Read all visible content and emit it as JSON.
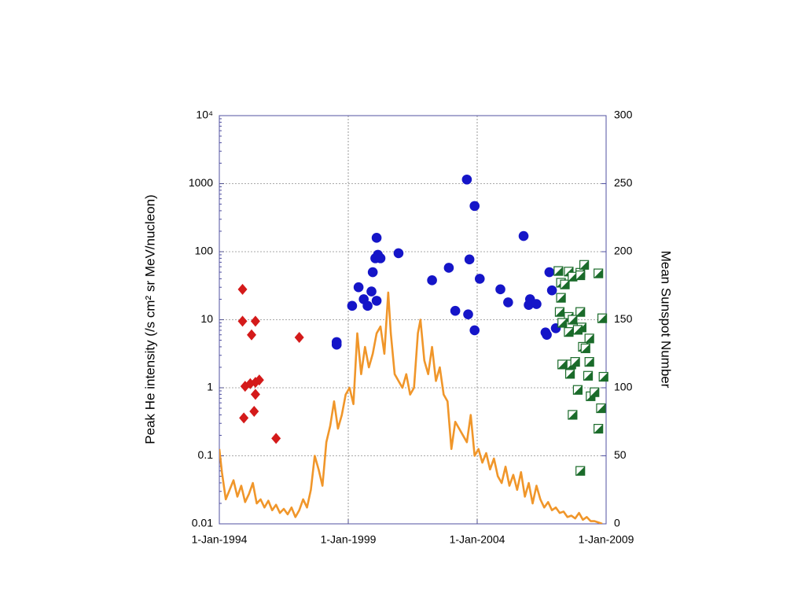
{
  "chart_data": {
    "type": "scatter",
    "ylabel": "Peak He intensity (/s cm² sr MeV/nucleon)",
    "y2label": "Mean Sunspot Number",
    "xlim": [
      1994,
      2009
    ],
    "xticks": [
      {
        "value": 1994,
        "label": "1-Jan-1994"
      },
      {
        "value": 1999,
        "label": "1-Jan-1999"
      },
      {
        "value": 2004,
        "label": "1-Jan-2004"
      },
      {
        "value": 2009,
        "label": "1-Jan-2009"
      }
    ],
    "ylim": [
      0.01,
      10000
    ],
    "ylog": true,
    "yticks": [
      0.01,
      0.1,
      1,
      10,
      100,
      1000,
      {
        "value": 10000,
        "label": "10⁴"
      }
    ],
    "y2lim": [
      0,
      300
    ],
    "y2ticks": [
      0,
      50,
      100,
      150,
      200,
      250,
      300
    ],
    "grid": true,
    "series": [
      {
        "type": "line",
        "axis": "y2",
        "color": "#f0962a",
        "x": [
          1994.0,
          1994.1,
          1994.25,
          1994.4,
          1994.55,
          1994.7,
          1994.85,
          1995.0,
          1995.15,
          1995.3,
          1995.45,
          1995.6,
          1995.75,
          1995.9,
          1996.05,
          1996.2,
          1996.35,
          1996.5,
          1996.65,
          1996.8,
          1996.95,
          1997.1,
          1997.25,
          1997.4,
          1997.55,
          1997.7,
          1997.85,
          1998.0,
          1998.15,
          1998.3,
          1998.45,
          1998.6,
          1998.75,
          1998.9,
          1999.05,
          1999.2,
          1999.35,
          1999.5,
          1999.65,
          1999.8,
          1999.95,
          2000.1,
          2000.25,
          2000.4,
          2000.55,
          2000.65,
          2000.8,
          2000.95,
          2001.1,
          2001.25,
          2001.4,
          2001.55,
          2001.7,
          2001.8,
          2001.95,
          2002.1,
          2002.25,
          2002.4,
          2002.55,
          2002.7,
          2002.85,
          2003.0,
          2003.15,
          2003.3,
          2003.45,
          2003.6,
          2003.75,
          2003.9,
          2004.05,
          2004.2,
          2004.35,
          2004.5,
          2004.65,
          2004.8,
          2004.95,
          2005.1,
          2005.25,
          2005.4,
          2005.55,
          2005.7,
          2005.85,
          2006.0,
          2006.15,
          2006.3,
          2006.45,
          2006.6,
          2006.75,
          2006.9,
          2007.05,
          2007.2,
          2007.35,
          2007.5,
          2007.65,
          2007.8,
          2007.95,
          2008.1,
          2008.25,
          2008.4,
          2008.55,
          2008.7,
          2008.85
        ],
        "values": [
          55,
          38,
          18,
          25,
          32,
          20,
          28,
          16,
          22,
          30,
          15,
          18,
          12,
          17,
          10,
          14,
          8,
          11,
          7,
          12,
          5,
          10,
          18,
          12,
          25,
          50,
          40,
          28,
          60,
          72,
          90,
          70,
          80,
          95,
          100,
          88,
          140,
          110,
          130,
          115,
          125,
          140,
          145,
          125,
          170,
          140,
          110,
          105,
          100,
          110,
          95,
          100,
          140,
          150,
          120,
          110,
          130,
          105,
          115,
          95,
          90,
          55,
          75,
          70,
          65,
          60,
          80,
          50,
          55,
          45,
          52,
          40,
          48,
          35,
          30,
          42,
          28,
          36,
          25,
          38,
          20,
          30,
          15,
          28,
          18,
          12,
          16,
          10,
          12,
          8,
          9,
          5,
          6,
          4,
          8,
          3,
          5,
          2,
          2,
          1,
          0
        ]
      },
      {
        "marker": "diamond",
        "color": "#d41a1a",
        "x": [
          1994.9,
          1994.9,
          1995.4,
          1995.25,
          1997.1,
          1995.0,
          1995.2,
          1995.4,
          1995.55,
          1995.4,
          1995.35,
          1994.95,
          1996.2
        ],
        "values": [
          28,
          9.5,
          9.5,
          6,
          5.5,
          1.05,
          1.15,
          1.2,
          1.3,
          0.8,
          0.45,
          0.36,
          0.18
        ]
      },
      {
        "marker": "circle",
        "color": "#1515c8",
        "x": [
          1998.55,
          1998.55,
          1999.15,
          1999.4,
          1999.6,
          1999.75,
          1999.9,
          1999.95,
          2000.05,
          2000.1,
          2000.1,
          2000.15,
          2000.25,
          2000.95,
          2002.25,
          2002.9,
          2003.15,
          2003.6,
          2003.65,
          2003.7,
          2003.9,
          2003.9,
          2004.1,
          2004.9,
          2005.2,
          2005.8,
          2006.0,
          2006.05,
          2006.3,
          2006.65,
          2006.7,
          2006.8,
          2006.9,
          2007.05
        ],
        "values": [
          4.7,
          4.3,
          16,
          30,
          20,
          16,
          26,
          50,
          80,
          19,
          160,
          90,
          80,
          95,
          38,
          58,
          13.5,
          1150,
          12,
          77,
          470,
          7,
          40,
          28,
          18,
          170,
          16.5,
          20,
          17,
          6.5,
          6,
          50,
          27,
          7.5
        ]
      },
      {
        "marker": "half-square",
        "color": "#1a6b2a",
        "x": [
          2007.15,
          2007.55,
          2008.0,
          2008.15,
          2008.7,
          2007.25,
          2007.4,
          2007.7,
          2008.0,
          2007.25,
          2007.2,
          2007.55,
          2008.0,
          2007.3,
          2007.7,
          2008.05,
          2007.55,
          2007.9,
          2008.35,
          2008.1,
          2008.2,
          2007.3,
          2007.65,
          2007.8,
          2008.35,
          2008.85,
          2007.6,
          2008.3,
          2008.9,
          2007.9,
          2008.4,
          2008.55,
          2008.8,
          2007.7,
          2008.7,
          2008.0
        ],
        "values": [
          52,
          51,
          49,
          64,
          48,
          35,
          33,
          43,
          45,
          21,
          13,
          11,
          13,
          9,
          10,
          7.7,
          6.6,
          7.1,
          5.3,
          4,
          3.8,
          2.2,
          2.2,
          2.4,
          2.4,
          10.5,
          1.6,
          1.5,
          1.45,
          0.93,
          0.75,
          0.86,
          0.5,
          0.4,
          0.25,
          0.06
        ]
      }
    ]
  }
}
